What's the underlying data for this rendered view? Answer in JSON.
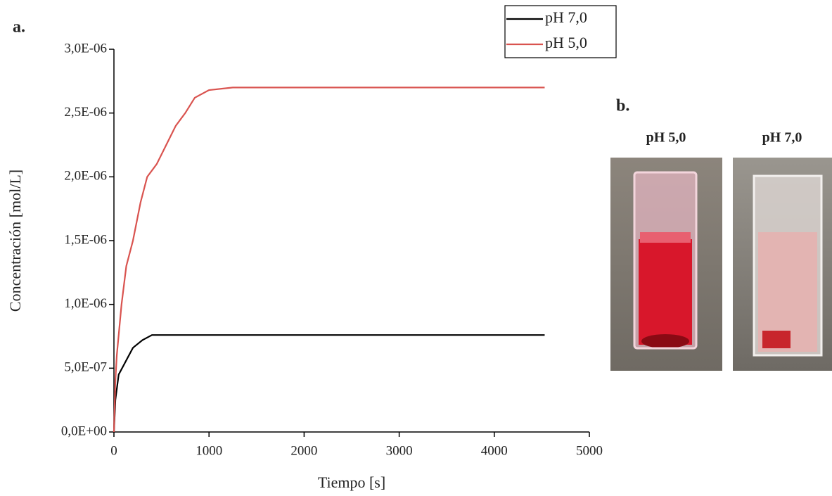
{
  "chart_data": {
    "type": "line",
    "xlabel": "Tiempo [s]",
    "ylabel": "Concentración [mol/L]",
    "xlim": [
      0,
      5000
    ],
    "xticks": [
      0,
      1000,
      2000,
      3000,
      4000,
      5000
    ],
    "ylim": [
      0,
      3e-06
    ],
    "yticks": [
      {
        "value": 0,
        "label": "0,0E+00"
      },
      {
        "value": 5e-07,
        "label": "5,0E-07"
      },
      {
        "value": 1e-06,
        "label": "1,0E-06"
      },
      {
        "value": 1.5e-06,
        "label": "1,5E-06"
      },
      {
        "value": 2e-06,
        "label": "2,0E-06"
      },
      {
        "value": 2.5e-06,
        "label": "2,5E-06"
      },
      {
        "value": 3e-06,
        "label": "3,0E-06"
      }
    ],
    "legend": "top-right",
    "series": [
      {
        "name": "pH 7,0",
        "color": "#000000",
        "x": [
          0,
          15,
          50,
          100,
          200,
          300,
          400,
          4530
        ],
        "values": [
          0,
          2.5e-07,
          4.5e-07,
          5.2e-07,
          6.6e-07,
          7.2e-07,
          7.6e-07,
          7.6e-07
        ]
      },
      {
        "name": "pH 5,0",
        "color": "#d9534f",
        "x": [
          0,
          15,
          30,
          80,
          130,
          200,
          280,
          350,
          450,
          550,
          650,
          750,
          850,
          1000,
          1250,
          4530
        ],
        "values": [
          0,
          4e-07,
          6e-07,
          1e-06,
          1.3e-06,
          1.5e-06,
          1.8e-06,
          2e-06,
          2.1e-06,
          2.25e-06,
          2.4e-06,
          2.5e-06,
          2.62e-06,
          2.68e-06,
          2.7e-06,
          2.7e-06
        ]
      }
    ]
  },
  "panels": {
    "a": "a.",
    "b": "b."
  },
  "photos": [
    {
      "label": "pH 5,0"
    },
    {
      "label": "pH 7,0"
    }
  ]
}
